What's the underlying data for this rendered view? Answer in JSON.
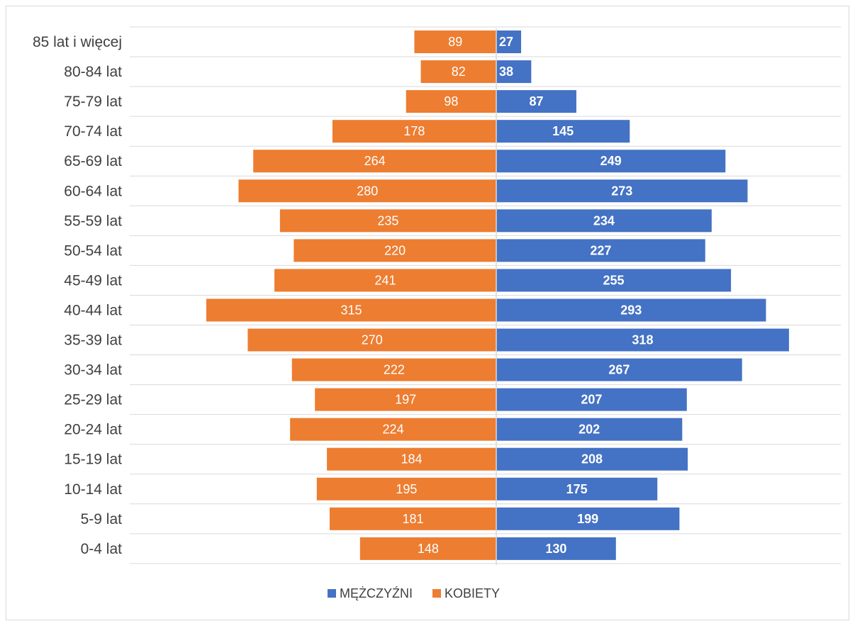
{
  "chart_data": {
    "type": "bar",
    "orientation": "horizontal",
    "layout": "population-pyramid",
    "title": "",
    "xlabel": "",
    "ylabel": "",
    "categories": [
      "85 lat i więcej",
      "80-84 lat",
      "75-79 lat",
      "70-74 lat",
      "65-69 lat",
      "60-64 lat",
      "55-59 lat",
      "50-54 lat",
      "45-49 lat",
      "40-44 lat",
      "35-39 lat",
      "30-34 lat",
      "25-29 lat",
      "20-24 lat",
      "15-19 lat",
      "10-14 lat",
      "5-9 lat",
      "0-4 lat"
    ],
    "series": [
      {
        "name": "MĘŻCZYŹNI",
        "color": "#4472c4",
        "side": "right",
        "values": [
          27,
          38,
          87,
          145,
          249,
          273,
          234,
          227,
          255,
          293,
          318,
          267,
          207,
          202,
          208,
          175,
          199,
          130
        ]
      },
      {
        "name": "KOBIETY",
        "color": "#ed7d31",
        "side": "left",
        "values": [
          89,
          82,
          98,
          178,
          264,
          280,
          235,
          220,
          241,
          315,
          270,
          222,
          197,
          224,
          184,
          195,
          181,
          148
        ]
      }
    ],
    "data_labels": true,
    "grid": true,
    "legend_position": "bottom"
  }
}
